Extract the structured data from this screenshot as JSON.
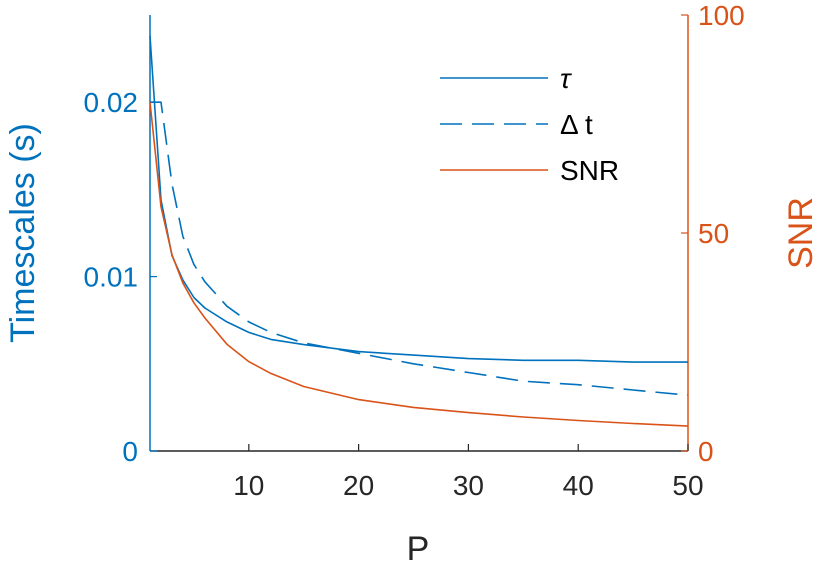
{
  "chart_data": {
    "type": "line",
    "xlabel": "P",
    "ylabel_left": "Timescales (s)",
    "ylabel_right": "SNR",
    "xlim": [
      1,
      50
    ],
    "ylim_left": [
      0,
      0.025
    ],
    "ylim_right": [
      0,
      100
    ],
    "x_ticks": [
      10,
      20,
      30,
      40,
      50
    ],
    "x_tick_labels": [
      "10",
      "20",
      "30",
      "40",
      "50"
    ],
    "y_left_ticks": [
      0,
      0.01,
      0.02
    ],
    "y_left_tick_labels": [
      "0",
      "0.01",
      "0.02"
    ],
    "y_right_ticks": [
      0,
      50,
      100
    ],
    "y_right_tick_labels": [
      "0",
      "50",
      "100"
    ],
    "grid": false,
    "legend_position": "top-right",
    "colors": {
      "left_axis": "#0072BD",
      "right_axis": "#D95319"
    },
    "series": [
      {
        "name": "τ",
        "axis": "left",
        "style": "solid",
        "color": "#0072BD",
        "x": [
          1,
          2,
          3,
          4,
          5,
          6,
          8,
          10,
          12,
          15,
          20,
          25,
          30,
          35,
          40,
          45,
          50
        ],
        "y": [
          0.0238,
          0.0144,
          0.0112,
          0.0098,
          0.0088,
          0.0082,
          0.0074,
          0.0068,
          0.0064,
          0.0061,
          0.0057,
          0.0055,
          0.0053,
          0.0052,
          0.0052,
          0.0051,
          0.0051
        ]
      },
      {
        "name": "Δ t",
        "axis": "left",
        "style": "dashed",
        "color": "#0072BD",
        "x": [
          1,
          2,
          3,
          4,
          5,
          6,
          8,
          10,
          12,
          15,
          20,
          25,
          30,
          35,
          40,
          45,
          50
        ],
        "y": [
          0.02,
          0.02,
          0.0153,
          0.0123,
          0.0107,
          0.0097,
          0.0083,
          0.0074,
          0.0068,
          0.0062,
          0.0056,
          0.005,
          0.0045,
          0.004,
          0.0038,
          0.0035,
          0.0032
        ]
      },
      {
        "name": "SNR",
        "axis": "right",
        "style": "solid",
        "color": "#D95319",
        "x": [
          1,
          2,
          3,
          4,
          5,
          6,
          8,
          10,
          12,
          15,
          20,
          25,
          30,
          35,
          40,
          45,
          50
        ],
        "y": [
          80,
          56,
          45,
          38.5,
          34,
          30.5,
          24.5,
          20.5,
          17.8,
          14.8,
          11.8,
          10.0,
          8.8,
          7.8,
          7.0,
          6.3,
          5.7
        ]
      }
    ]
  }
}
